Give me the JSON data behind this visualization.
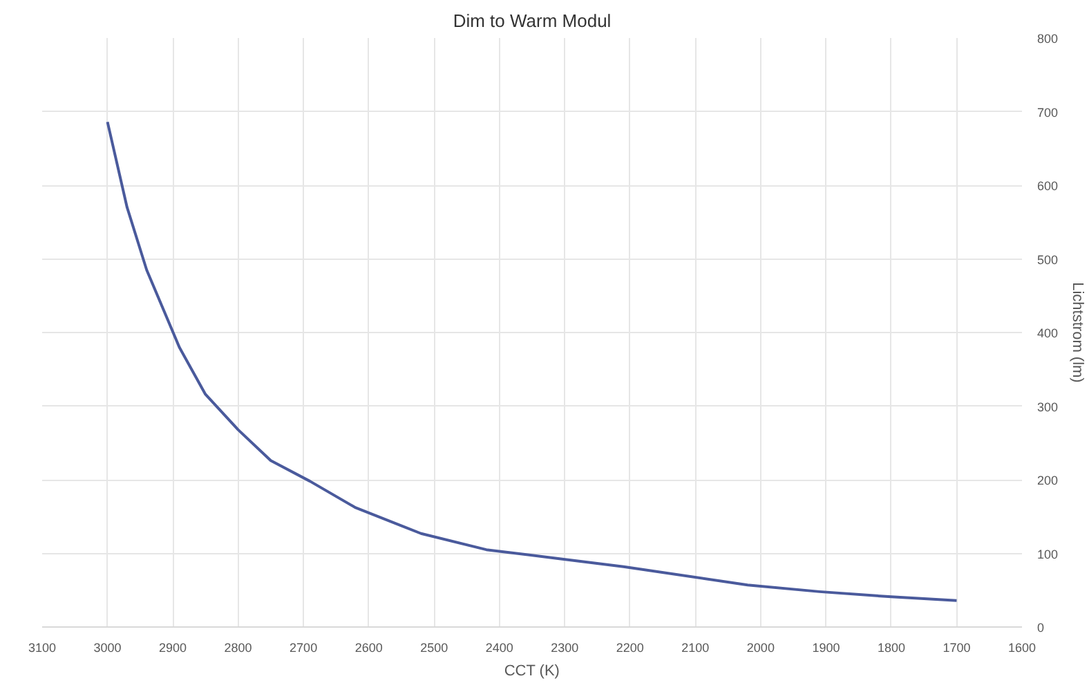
{
  "chart_data": {
    "type": "line",
    "title": "Dim to Warm Modul",
    "xlabel": "CCT (K)",
    "ylabel": "Lichtstrom (lm)",
    "x": [
      3000,
      2970,
      2940,
      2890,
      2850,
      2800,
      2750,
      2690,
      2620,
      2520,
      2420,
      2310,
      2210,
      2020,
      1910,
      1800,
      1700
    ],
    "series": [
      {
        "color": "#4a5a9c",
        "values": [
          686,
          570,
          485,
          380,
          316,
          268,
          226,
          198,
          162,
          127,
          105,
          93,
          82,
          57,
          48,
          41,
          36
        ]
      }
    ],
    "xlim": [
      3100,
      1600
    ],
    "xticks": [
      3100,
      3000,
      2900,
      2800,
      2700,
      2600,
      2500,
      2400,
      2300,
      2200,
      2100,
      2000,
      1900,
      1800,
      1700,
      1600
    ],
    "ylim": [
      0,
      800
    ],
    "yticks": [
      0,
      100,
      200,
      300,
      400,
      500,
      600,
      700,
      800
    ],
    "grid": true,
    "marker": "none",
    "line_style": "solid"
  }
}
